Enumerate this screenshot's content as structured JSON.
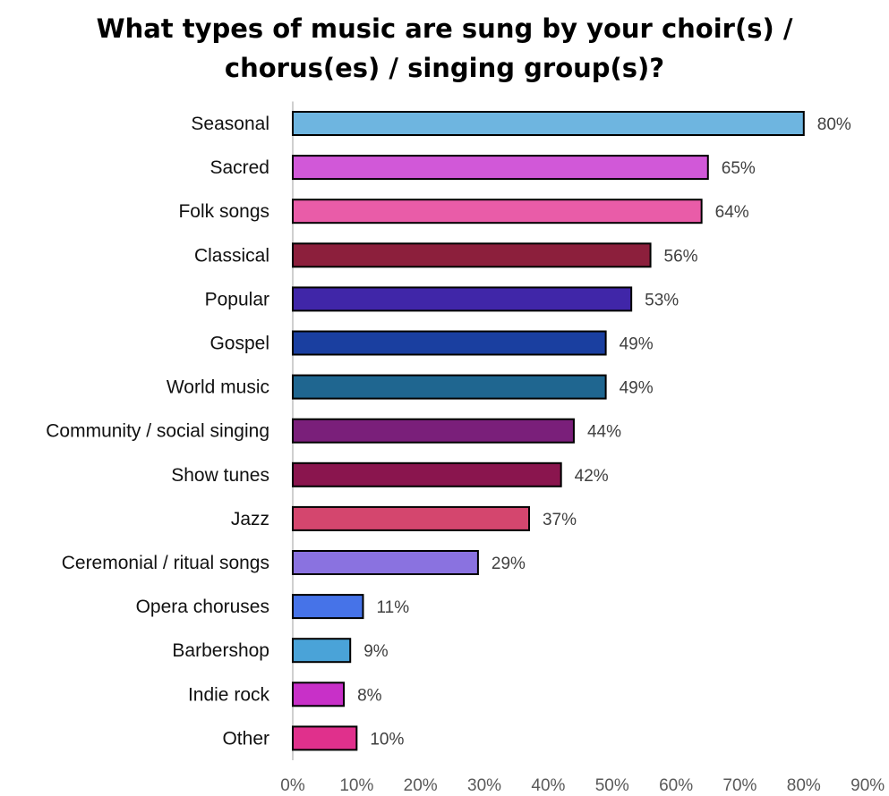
{
  "chart_data": {
    "type": "bar",
    "orientation": "horizontal",
    "title_lines": [
      "What types of music are sung by your choir(s) /",
      "chorus(es) / singing group(s)?"
    ],
    "categories": [
      "Seasonal",
      "Sacred",
      "Folk songs",
      "Classical",
      "Popular",
      "Gospel",
      "World music",
      "Community / social singing",
      "Show tunes",
      "Jazz",
      "Ceremonial / ritual songs",
      "Opera choruses",
      "Barbershop",
      "Indie rock",
      "Other"
    ],
    "values": [
      80,
      65,
      64,
      56,
      53,
      49,
      49,
      44,
      42,
      37,
      29,
      11,
      9,
      8,
      10
    ],
    "value_labels": [
      "80%",
      "65%",
      "64%",
      "56%",
      "53%",
      "49%",
      "49%",
      "44%",
      "42%",
      "37%",
      "29%",
      "11%",
      "9%",
      "8%",
      "10%"
    ],
    "colors": [
      "#6EB5E0",
      "#D158D8",
      "#E95CA8",
      "#8C1F3C",
      "#4026A8",
      "#1A3FA0",
      "#1F6690",
      "#7A1F7A",
      "#8A154E",
      "#D4466E",
      "#8A72E0",
      "#4673E8",
      "#4AA3D8",
      "#C830C8",
      "#E0308C"
    ],
    "xlim": [
      0,
      90
    ],
    "xticks": [
      "0%",
      "10%",
      "20%",
      "30%",
      "40%",
      "50%",
      "60%",
      "70%",
      "80%",
      "90%"
    ],
    "xlabel": "",
    "ylabel": "",
    "grid": false,
    "legend": "none"
  }
}
